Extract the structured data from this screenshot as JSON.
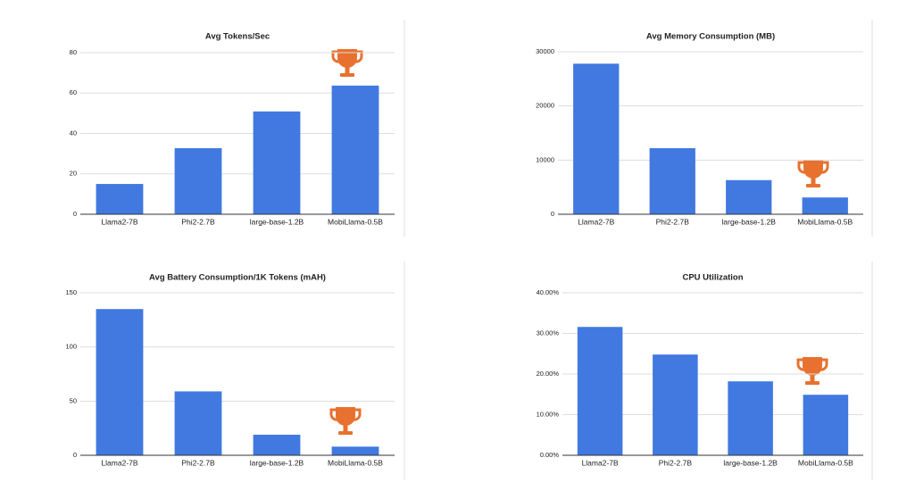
{
  "chart_data": [
    {
      "type": "bar",
      "title": "Avg Tokens/Sec",
      "categories": [
        "Llama2-7B",
        "Phi2-2.7B",
        "large-base-1.2B",
        "MobiLlama-0.5B"
      ],
      "values": [
        15,
        32.7,
        50.9,
        63.7
      ],
      "color": "#4179e0",
      "ylim": [
        0,
        80
      ],
      "yticks": [
        0,
        20,
        40,
        60,
        80
      ],
      "grid": true
    },
    {
      "type": "bar",
      "title": "Avg Memory Consumption (MB)",
      "categories": [
        "Llama2-7B",
        "Phi2-2.7B",
        "large-base-1.2B",
        "MobiLlama-0.5B"
      ],
      "values": [
        27800,
        12200,
        6300,
        3100
      ],
      "color": "#4179e0",
      "ylim": [
        0,
        30000
      ],
      "yticks": [
        0,
        10000,
        20000,
        30000
      ],
      "grid": true
    },
    {
      "type": "bar",
      "title": "Avg Battery Consumption/1K Tokens (mAH)",
      "categories": [
        "Llama2-7B",
        "Phi2-2.7B",
        "large-base-1.2B",
        "MobiLlama-0.5B"
      ],
      "values": [
        135,
        59,
        19,
        8
      ],
      "color": "#4179e0",
      "ylim": [
        0,
        150
      ],
      "yticks": [
        0,
        50,
        100,
        150
      ],
      "grid": true
    },
    {
      "type": "bar",
      "title": "CPU Utilization",
      "categories": [
        "Llama2-7B",
        "Phi2-2.7B",
        "large-base-1.2B",
        "MobiLlama-0.5B"
      ],
      "values": [
        31.6,
        24.8,
        18.2,
        14.9
      ],
      "color": "#4179e0",
      "ylim": [
        0,
        40
      ],
      "yticks": [
        {
          "value": 0,
          "label": "0.00%"
        },
        {
          "value": 10,
          "label": "10.00%"
        },
        {
          "value": 20,
          "label": "20.00%"
        },
        {
          "value": 30,
          "label": "30.00%"
        },
        {
          "value": 40,
          "label": "40.00%"
        }
      ],
      "grid": true
    }
  ]
}
